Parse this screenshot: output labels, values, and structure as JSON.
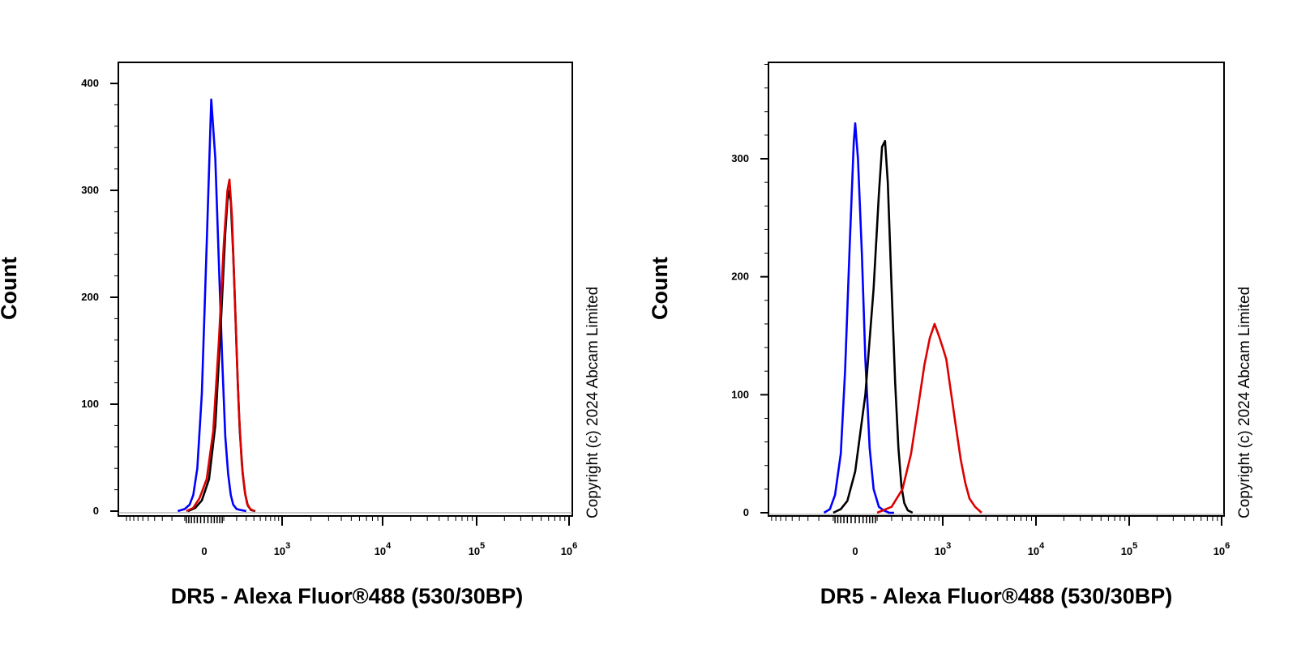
{
  "chart_data": [
    {
      "type": "line",
      "panel": "left",
      "xlabel": "DR5 - Alexa Fluor®488 (530/30BP)",
      "ylabel": "Count",
      "ylim": [
        0,
        400
      ],
      "yticks": [
        0,
        100,
        200,
        300,
        400
      ],
      "xticks": [
        {
          "base": "0",
          "exp": ""
        },
        {
          "base": "10",
          "exp": "3"
        },
        {
          "base": "10",
          "exp": "4"
        },
        {
          "base": "10",
          "exp": "5"
        },
        {
          "base": "10",
          "exp": "6"
        }
      ],
      "copyright": "Copyright (c) 2024 Abcam Limited",
      "grid": false,
      "series": [
        {
          "color": "#0000ff",
          "x": [
            -150,
            -100,
            -70,
            -50,
            -30,
            -10,
            10,
            30,
            50,
            70,
            90,
            110,
            130,
            150,
            170,
            200,
            240,
            300
          ],
          "y": [
            0,
            2,
            6,
            15,
            40,
            110,
            250,
            385,
            330,
            230,
            140,
            70,
            35,
            15,
            6,
            2,
            1,
            0
          ]
        },
        {
          "color": "#000000",
          "x": [
            -80,
            -40,
            -10,
            20,
            50,
            80,
            110,
            130,
            150,
            170,
            190,
            210,
            230,
            260,
            290,
            320,
            360,
            420
          ],
          "y": [
            0,
            3,
            10,
            30,
            80,
            170,
            260,
            300,
            290,
            240,
            180,
            120,
            75,
            35,
            15,
            5,
            1,
            0
          ]
        },
        {
          "color": "#dd0000",
          "x": [
            -90,
            -50,
            -20,
            10,
            40,
            70,
            100,
            125,
            140,
            160,
            180,
            200,
            220,
            250,
            280,
            310,
            350,
            410
          ],
          "y": [
            0,
            3,
            12,
            30,
            75,
            160,
            250,
            300,
            310,
            275,
            210,
            150,
            95,
            45,
            20,
            7,
            2,
            0
          ]
        }
      ]
    },
    {
      "type": "line",
      "panel": "right",
      "xlabel": "DR5 - Alexa Fluor®488 (530/30BP)",
      "ylabel": "Count",
      "ylim": [
        0,
        380
      ],
      "yticks": [
        0,
        100,
        200,
        300
      ],
      "xticks": [
        {
          "base": "0",
          "exp": ""
        },
        {
          "base": "10",
          "exp": "3"
        },
        {
          "base": "10",
          "exp": "4"
        },
        {
          "base": "10",
          "exp": "5"
        },
        {
          "base": "10",
          "exp": "6"
        }
      ],
      "copyright": "Copyright (c) 2024 Abcam Limited",
      "grid": false,
      "series": [
        {
          "color": "#0000ff",
          "x": [
            -160,
            -120,
            -90,
            -60,
            -40,
            -20,
            -5,
            0,
            10,
            25,
            40,
            60,
            80,
            110,
            140,
            180,
            220
          ],
          "y": [
            0,
            3,
            15,
            50,
            120,
            230,
            315,
            330,
            300,
            220,
            130,
            55,
            20,
            5,
            2,
            0,
            0
          ]
        },
        {
          "color": "#000000",
          "x": [
            -100,
            -60,
            -30,
            0,
            40,
            80,
            110,
            130,
            150,
            170,
            200,
            230,
            260,
            290,
            320,
            360,
            420
          ],
          "y": [
            0,
            3,
            10,
            35,
            100,
            190,
            270,
            310,
            315,
            280,
            190,
            110,
            55,
            22,
            8,
            2,
            0
          ]
        },
        {
          "color": "#dd0000",
          "x": [
            100,
            200,
            300,
            400,
            500,
            600,
            700,
            800,
            900,
            1000,
            1100,
            1200,
            1400,
            1600,
            1800,
            2000,
            2300,
            2700
          ],
          "y": [
            0,
            5,
            20,
            50,
            90,
            125,
            148,
            160,
            150,
            140,
            130,
            110,
            75,
            45,
            25,
            12,
            5,
            0
          ]
        }
      ]
    }
  ]
}
